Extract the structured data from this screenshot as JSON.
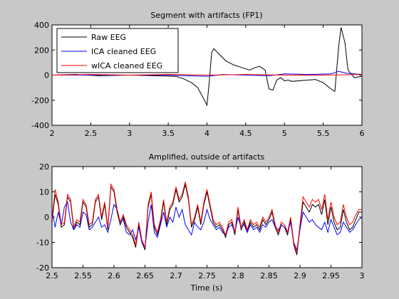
{
  "chart_data": [
    {
      "type": "line",
      "title": "Segment with artifacts (FP1)",
      "xlabel": "",
      "ylabel": "",
      "xlim": [
        2,
        6
      ],
      "ylim": [
        -400,
        400
      ],
      "xticks": [
        "2",
        "2.5",
        "3",
        "3.5",
        "4",
        "4.5",
        "5",
        "5.5",
        "6"
      ],
      "yticks": [
        "-400",
        "-200",
        "0",
        "200",
        "400"
      ],
      "grid": false,
      "legend": "top-left",
      "series": [
        {
          "name": "Raw EEG",
          "color": "#000000",
          "x": [
            2.0,
            2.3,
            2.6,
            3.0,
            3.3,
            3.6,
            3.7,
            3.8,
            3.88,
            3.95,
            4.0,
            4.03,
            4.06,
            4.09,
            4.15,
            4.25,
            4.35,
            4.45,
            4.55,
            4.62,
            4.68,
            4.75,
            4.8,
            4.85,
            4.9,
            4.95,
            5.0,
            5.05,
            5.1,
            5.2,
            5.3,
            5.4,
            5.5,
            5.6,
            5.65,
            5.7,
            5.73,
            5.78,
            5.82,
            5.9,
            6.0
          ],
          "y": [
            0,
            5,
            -5,
            0,
            -5,
            -10,
            -30,
            -60,
            -100,
            -180,
            -240,
            -50,
            180,
            210,
            170,
            110,
            80,
            60,
            40,
            60,
            70,
            40,
            -110,
            -120,
            -40,
            -20,
            -45,
            -40,
            -50,
            -45,
            -40,
            -35,
            -60,
            -110,
            -130,
            230,
            380,
            260,
            40,
            -20,
            -10
          ]
        },
        {
          "name": "ICA cleaned EEG",
          "color": "#0000ff",
          "x": [
            2.0,
            2.5,
            3.0,
            3.5,
            4.0,
            4.2,
            4.5,
            4.8,
            5.0,
            5.3,
            5.6,
            5.7,
            5.8,
            6.0
          ],
          "y": [
            0,
            0,
            0,
            0,
            -10,
            5,
            0,
            -5,
            10,
            5,
            10,
            30,
            15,
            5
          ]
        },
        {
          "name": "wICA cleaned EEG",
          "color": "#ff0000",
          "x": [
            2.0,
            2.5,
            3.0,
            3.5,
            4.0,
            4.5,
            5.0,
            5.5,
            6.0
          ],
          "y": [
            0,
            5,
            0,
            5,
            0,
            5,
            0,
            0,
            5
          ]
        }
      ]
    },
    {
      "type": "line",
      "title": "Amplified, outside of artifacts",
      "xlabel": "Time (s)",
      "ylabel": "",
      "xlim": [
        2.5,
        3.0
      ],
      "ylim": [
        -20,
        20
      ],
      "xticks": [
        "2.5",
        "2.55",
        "2.6",
        "2.65",
        "2.7",
        "2.75",
        "2.8",
        "2.85",
        "2.9",
        "2.95",
        "3"
      ],
      "yticks": [
        "-20",
        "-10",
        "0",
        "10",
        "20"
      ],
      "grid": false,
      "series": [
        {
          "name": "Raw EEG",
          "color": "#000000",
          "x": [
            2.5,
            2.505,
            2.51,
            2.515,
            2.52,
            2.525,
            2.53,
            2.535,
            2.54,
            2.545,
            2.55,
            2.555,
            2.56,
            2.565,
            2.57,
            2.575,
            2.58,
            2.585,
            2.59,
            2.595,
            2.6,
            2.605,
            2.61,
            2.615,
            2.62,
            2.625,
            2.63,
            2.635,
            2.64,
            2.645,
            2.65,
            2.655,
            2.66,
            2.665,
            2.67,
            2.675,
            2.68,
            2.685,
            2.69,
            2.695,
            2.7,
            2.705,
            2.71,
            2.715,
            2.72,
            2.725,
            2.73,
            2.735,
            2.74,
            2.745,
            2.75,
            2.755,
            2.76,
            2.765,
            2.77,
            2.775,
            2.78,
            2.785,
            2.79,
            2.795,
            2.8,
            2.805,
            2.81,
            2.815,
            2.82,
            2.825,
            2.83,
            2.835,
            2.84,
            2.845,
            2.85,
            2.855,
            2.86,
            2.865,
            2.87,
            2.875,
            2.88,
            2.885,
            2.89,
            2.895,
            2.9,
            2.905,
            2.91,
            2.915,
            2.92,
            2.925,
            2.93,
            2.935,
            2.94,
            2.945,
            2.95,
            2.955,
            2.96,
            2.965,
            2.97,
            2.975,
            2.98,
            2.985,
            2.99,
            2.995,
            3.0
          ],
          "y": [
            -2,
            9,
            5,
            -4,
            -3,
            8,
            6,
            -5,
            -2,
            -3,
            6,
            4,
            -4,
            -3,
            6,
            8,
            -1,
            5,
            -5,
            12,
            10,
            2,
            -3,
            0,
            -4,
            -6,
            -8,
            -12,
            -3,
            -10,
            -13,
            4,
            9,
            -4,
            -7,
            -2,
            6,
            -3,
            3,
            5,
            11,
            6,
            8,
            13,
            7,
            -4,
            -1,
            4,
            -3,
            5,
            10,
            4,
            -2,
            -4,
            -3,
            -5,
            -8,
            -3,
            -2,
            -7,
            3,
            -5,
            -2,
            -6,
            -2,
            -4,
            -3,
            -5,
            -1,
            -3,
            -1,
            2,
            -4,
            -7,
            -3,
            -4,
            -7,
            -1,
            -11,
            -15,
            -4,
            6,
            4,
            2,
            5,
            4,
            5,
            1,
            7,
            -3,
            4,
            -2,
            -5,
            -4,
            3,
            -2,
            -5,
            -4,
            -1,
            2,
            2
          ]
        },
        {
          "name": "ICA cleaned EEG",
          "color": "#0000ff",
          "x": [
            2.5,
            2.505,
            2.51,
            2.515,
            2.52,
            2.525,
            2.53,
            2.535,
            2.54,
            2.545,
            2.55,
            2.555,
            2.56,
            2.565,
            2.57,
            2.575,
            2.58,
            2.585,
            2.59,
            2.595,
            2.6,
            2.605,
            2.61,
            2.615,
            2.62,
            2.625,
            2.63,
            2.635,
            2.64,
            2.645,
            2.65,
            2.655,
            2.66,
            2.665,
            2.67,
            2.675,
            2.68,
            2.685,
            2.69,
            2.695,
            2.7,
            2.705,
            2.71,
            2.715,
            2.72,
            2.725,
            2.73,
            2.735,
            2.74,
            2.745,
            2.75,
            2.755,
            2.76,
            2.765,
            2.77,
            2.775,
            2.78,
            2.785,
            2.79,
            2.795,
            2.8,
            2.805,
            2.81,
            2.815,
            2.82,
            2.825,
            2.83,
            2.835,
            2.84,
            2.845,
            2.85,
            2.855,
            2.86,
            2.865,
            2.87,
            2.875,
            2.88,
            2.885,
            2.89,
            2.895,
            2.9,
            2.905,
            2.91,
            2.915,
            2.92,
            2.925,
            2.93,
            2.935,
            2.94,
            2.945,
            2.95,
            2.955,
            2.96,
            2.965,
            2.97,
            2.975,
            2.98,
            2.985,
            2.99,
            2.995,
            3.0
          ],
          "y": [
            3,
            -4,
            2,
            -3,
            4,
            6,
            -2,
            -5,
            -3,
            -4,
            2,
            1,
            -5,
            -4,
            -2,
            0,
            -4,
            -3,
            -6,
            -1,
            5,
            3,
            -2,
            -1,
            -6,
            -7,
            -5,
            -9,
            -4,
            -10,
            -12,
            -2,
            5,
            -6,
            -8,
            -3,
            2,
            -4,
            0,
            -2,
            4,
            0,
            3,
            -3,
            -5,
            -7,
            -2,
            -4,
            -5,
            -2,
            3,
            -1,
            -3,
            -5,
            -4,
            -6,
            -7,
            -4,
            -3,
            -6,
            0,
            -4,
            -3,
            -6,
            -3,
            -5,
            -4,
            -6,
            -3,
            -4,
            -2,
            -1,
            -4,
            -5,
            -3,
            -4,
            -6,
            -2,
            -10,
            -13,
            -5,
            2,
            0,
            -2,
            -1,
            -3,
            -4,
            -5,
            -2,
            -6,
            -1,
            -4,
            -7,
            -6,
            -2,
            -4,
            -6,
            -5,
            -3,
            -1,
            0
          ]
        },
        {
          "name": "wICA cleaned EEG",
          "color": "#ff0000",
          "x": [
            2.5,
            2.505,
            2.51,
            2.515,
            2.52,
            2.525,
            2.53,
            2.535,
            2.54,
            2.545,
            2.55,
            2.555,
            2.56,
            2.565,
            2.57,
            2.575,
            2.58,
            2.585,
            2.59,
            2.595,
            2.6,
            2.605,
            2.61,
            2.615,
            2.62,
            2.625,
            2.63,
            2.635,
            2.64,
            2.645,
            2.65,
            2.655,
            2.66,
            2.665,
            2.67,
            2.675,
            2.68,
            2.685,
            2.69,
            2.695,
            2.7,
            2.705,
            2.71,
            2.715,
            2.72,
            2.725,
            2.73,
            2.735,
            2.74,
            2.745,
            2.75,
            2.755,
            2.76,
            2.765,
            2.77,
            2.775,
            2.78,
            2.785,
            2.79,
            2.795,
            2.8,
            2.805,
            2.81,
            2.815,
            2.82,
            2.825,
            2.83,
            2.835,
            2.84,
            2.845,
            2.85,
            2.855,
            2.86,
            2.865,
            2.87,
            2.875,
            2.88,
            2.885,
            2.89,
            2.895,
            2.9,
            2.905,
            2.91,
            2.915,
            2.92,
            2.925,
            2.93,
            2.935,
            2.94,
            2.945,
            2.95,
            2.955,
            2.96,
            2.965,
            2.97,
            2.975,
            2.98,
            2.985,
            2.99,
            2.995,
            3.0
          ],
          "y": [
            -1,
            11,
            6,
            -3,
            -2,
            9,
            7,
            -4,
            -1,
            -2,
            7,
            5,
            -3,
            -2,
            7,
            9,
            0,
            6,
            -4,
            13,
            11,
            3,
            -2,
            1,
            -3,
            -5,
            -7,
            -11,
            -2,
            -9,
            -12,
            5,
            10,
            -3,
            -6,
            -1,
            7,
            -2,
            4,
            6,
            12,
            7,
            9,
            14,
            8,
            -3,
            0,
            5,
            -2,
            6,
            11,
            5,
            -1,
            -3,
            -2,
            -4,
            -7,
            -2,
            -1,
            -6,
            4,
            -4,
            -1,
            -5,
            -1,
            -3,
            -2,
            -4,
            0,
            -2,
            0,
            3,
            -3,
            -6,
            -2,
            -3,
            -6,
            0,
            -10,
            -14,
            -3,
            8,
            6,
            4,
            7,
            6,
            7,
            3,
            9,
            -1,
            6,
            0,
            -3,
            -2,
            5,
            0,
            -3,
            -2,
            1,
            3,
            3
          ]
        }
      ]
    }
  ]
}
